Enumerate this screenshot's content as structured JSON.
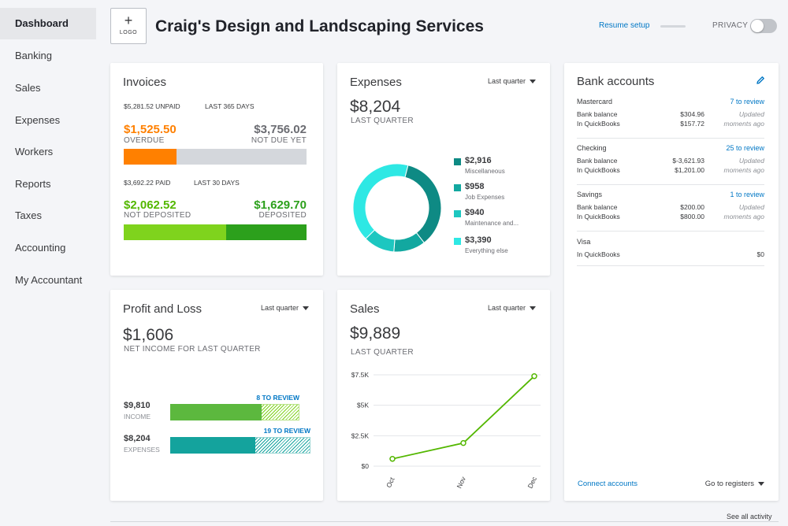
{
  "sidebar": {
    "items": [
      {
        "label": "Dashboard",
        "active": true
      },
      {
        "label": "Banking"
      },
      {
        "label": "Sales"
      },
      {
        "label": "Expenses"
      },
      {
        "label": "Workers"
      },
      {
        "label": "Reports"
      },
      {
        "label": "Taxes"
      },
      {
        "label": "Accounting"
      },
      {
        "label": "My Accountant"
      }
    ]
  },
  "header": {
    "logo_plus": "+",
    "logo_text": "LOGO",
    "company_name": "Craig's Design and Landscaping Services",
    "resume_setup": "Resume setup",
    "privacy_label": "PRIVACY"
  },
  "invoices": {
    "title": "Invoices",
    "unpaid_meta": "$5,281.52 UNPAID",
    "unpaid_period": "LAST 365 DAYS",
    "overdue_amount": "$1,525.50",
    "overdue_label": "OVERDUE",
    "not_due_amount": "$3,756.02",
    "not_due_label": "NOT DUE YET",
    "overdue_fraction": 0.289,
    "paid_meta": "$3,692.22 PAID",
    "paid_period": "LAST 30 DAYS",
    "not_deposited_amount": "$2,062.52",
    "not_deposited_label": "NOT DEPOSITED",
    "deposited_amount": "$1,629.70",
    "deposited_label": "DEPOSITED",
    "not_deposited_fraction": 0.559
  },
  "expenses": {
    "title": "Expenses",
    "period": "Last quarter",
    "total": "$8,204",
    "total_label": "LAST QUARTER",
    "categories": [
      {
        "amount": "$2,916",
        "label": "Miscellaneous",
        "value": 2916,
        "color": "#0e8a84"
      },
      {
        "amount": "$958",
        "label": "Job Expenses",
        "value": 958,
        "color": "#12a8a0"
      },
      {
        "amount": "$940",
        "label": "Maintenance and...",
        "value": 940,
        "color": "#1dc7c0"
      },
      {
        "amount": "$3,390",
        "label": "Everything else",
        "value": 3390,
        "color": "#2ee8e4"
      }
    ]
  },
  "bank": {
    "title": "Bank accounts",
    "accounts": [
      {
        "name": "Mastercard",
        "review": "7 to review",
        "bank_label": "Bank balance",
        "bank_value": "$304.96",
        "qb_label": "In QuickBooks",
        "qb_value": "$157.72",
        "updated1": "Updated",
        "updated2": "moments ago"
      },
      {
        "name": "Checking",
        "review": "25 to review",
        "bank_label": "Bank balance",
        "bank_value": "$-3,621.93",
        "qb_label": "In QuickBooks",
        "qb_value": "$1,201.00",
        "updated1": "Updated",
        "updated2": "moments ago"
      },
      {
        "name": "Savings",
        "review": "1 to review",
        "bank_label": "Bank balance",
        "bank_value": "$200.00",
        "qb_label": "In QuickBooks",
        "qb_value": "$800.00",
        "updated1": "Updated",
        "updated2": "moments ago"
      },
      {
        "name": "Visa",
        "qb_label": "In QuickBooks",
        "qb_value": "$0"
      }
    ],
    "connect": "Connect accounts",
    "registers": "Go to registers"
  },
  "profit_loss": {
    "title": "Profit and Loss",
    "period": "Last quarter",
    "net_income": "$1,606",
    "net_label": "NET INCOME FOR LAST QUARTER",
    "income_amount": "$9,810",
    "income_label": "INCOME",
    "income_review": "8 TO REVIEW",
    "income_fraction": 0.71,
    "expense_amount": "$8,204",
    "expense_label": "EXPENSES",
    "expense_review": "19 TO REVIEW",
    "expense_fraction": 0.605
  },
  "sales": {
    "title": "Sales",
    "period": "Last quarter",
    "total": "$9,889",
    "total_label": "LAST QUARTER"
  },
  "chart_data": {
    "type": "line",
    "categories": [
      "Oct",
      "Nov",
      "Dec"
    ],
    "values": [
      600,
      1900,
      7389
    ],
    "yticks": [
      "$0",
      "$2.5K",
      "$5K",
      "$7.5K"
    ],
    "ylim": [
      0,
      7500
    ],
    "color": "#53b700"
  },
  "footer": {
    "see_all": "See all activity"
  }
}
